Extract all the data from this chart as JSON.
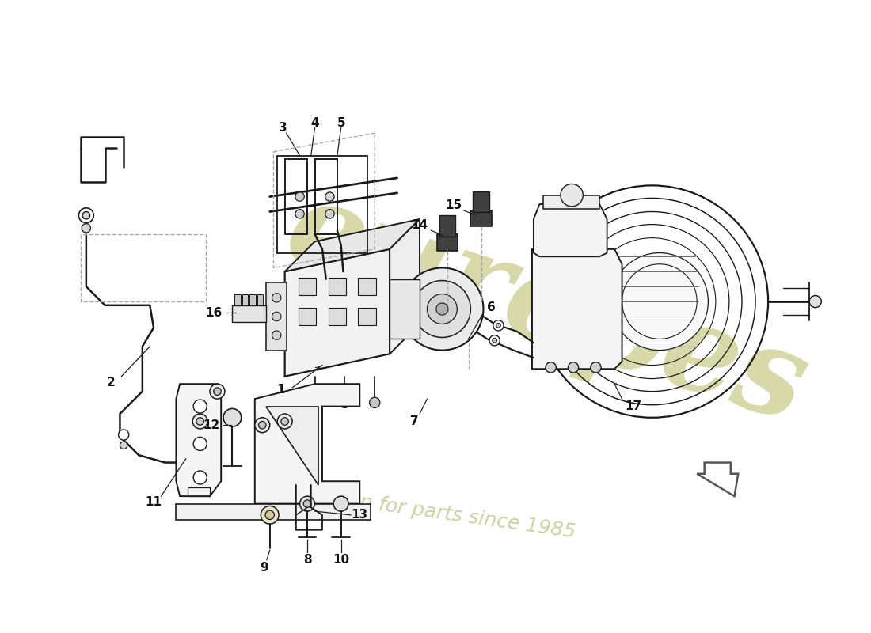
{
  "background_color": "#ffffff",
  "line_color": "#1a1a1a",
  "label_color": "#111111",
  "wm_color1": "#d8d8a8",
  "wm_color2": "#d0d0a0",
  "arrow_color": "#222222",
  "dashed_color": "#aaaaaa",
  "part_fill": "#f5f5f5",
  "motor_fill": "#eeeeee",
  "bracket_fill": "#f8f8f8"
}
